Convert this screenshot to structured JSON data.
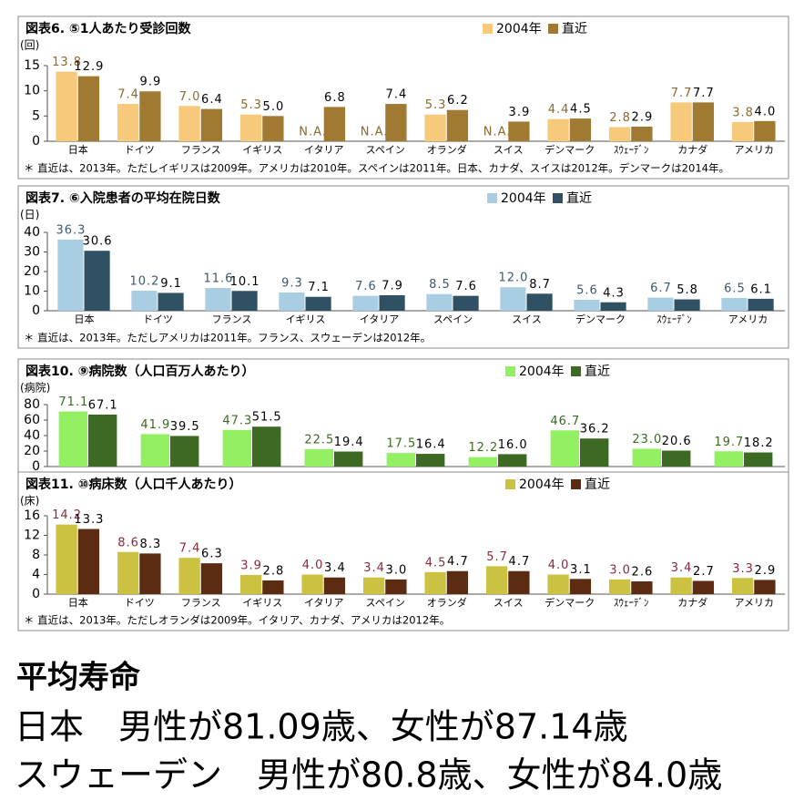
{
  "chart_data": [
    {
      "type": "bar",
      "title": "図表6. ⑤1人あたり受診回数",
      "y_label": "(回)",
      "categories": [
        "日本",
        "ドイツ",
        "フランス",
        "イギリス",
        "イタリア",
        "スペイン",
        "オランダ",
        "スイス",
        "デンマーク",
        "ｽｳｪｰﾃﾞﾝ",
        "カナダ",
        "アメリカ"
      ],
      "series": [
        {
          "name": "2004年",
          "color": "#f7c97a",
          "label_color": "#8a6a30",
          "values": [
            13.8,
            7.4,
            7.0,
            5.3,
            null,
            null,
            5.3,
            null,
            4.4,
            2.8,
            7.7,
            3.8
          ],
          "value_labels": [
            "13.8",
            "7.4",
            "7.0",
            "5.3",
            "N.A.",
            "N.A.",
            "5.3",
            "N.A.",
            "4.4",
            "2.8",
            "7.7",
            "3.8"
          ]
        },
        {
          "name": "直近",
          "color": "#a07a32",
          "label_color": "#000000",
          "values": [
            12.9,
            9.9,
            6.4,
            5.0,
            6.8,
            7.4,
            6.2,
            3.9,
            4.5,
            2.9,
            7.7,
            4.0
          ],
          "value_labels": [
            "12.9",
            "9.9",
            "6.4",
            "5.0",
            "6.8",
            "7.4",
            "6.2",
            "3.9",
            "4.5",
            "2.9",
            "7.7",
            "4.0"
          ]
        }
      ],
      "ylim": [
        0,
        15
      ],
      "yticks": [
        0,
        5,
        10,
        15
      ],
      "note": "＊ 直近は、2013年。ただしイギリスは2009年。アメリカは2010年。スペインは2011年。日本、カナダ、スイスは2012年。デンマークは2014年。"
    },
    {
      "type": "bar",
      "title": "図表7. ⑥入院患者の平均在院日数",
      "y_label": "(日)",
      "categories": [
        "日本",
        "ドイツ",
        "フランス",
        "イギリス",
        "イタリア",
        "スペイン",
        "スイス",
        "デンマーク",
        "ｽｳｪｰﾃﾞﾝ",
        "アメリカ"
      ],
      "series": [
        {
          "name": "2004年",
          "color": "#a9cde2",
          "label_color": "#3a5a70",
          "values": [
            36.3,
            10.2,
            11.6,
            9.3,
            7.6,
            8.5,
            12.0,
            5.6,
            6.7,
            6.5
          ],
          "value_labels": [
            "36.3",
            "10.2",
            "11.6",
            "9.3",
            "7.6",
            "8.5",
            "12.0",
            "5.6",
            "6.7",
            "6.5"
          ]
        },
        {
          "name": "直近",
          "color": "#2f5163",
          "label_color": "#000000",
          "values": [
            30.6,
            9.1,
            10.1,
            7.1,
            7.9,
            7.6,
            8.7,
            4.3,
            5.8,
            6.1
          ],
          "value_labels": [
            "30.6",
            "9.1",
            "10.1",
            "7.1",
            "7.9",
            "7.6",
            "8.7",
            "4.3",
            "5.8",
            "6.1"
          ]
        }
      ],
      "ylim": [
        0,
        40
      ],
      "yticks": [
        0,
        10,
        20,
        30,
        40
      ],
      "note": "＊ 直近は、2013年。ただしアメリカは2011年。フランス、スウェーデンは2012年。"
    },
    {
      "type": "bar",
      "title": "図表10. ⑨病院数（人口百万人あたり）",
      "y_label": "(病院)",
      "categories": [
        null,
        null,
        null,
        null,
        null,
        null,
        null,
        null,
        null
      ],
      "series": [
        {
          "name": "2004年",
          "color": "#92f062",
          "label_color": "#3a6a20",
          "values": [
            71.1,
            41.9,
            47.3,
            22.5,
            17.5,
            12.2,
            46.7,
            23.0,
            19.7
          ],
          "value_labels": [
            "71.1",
            "41.9",
            "47.3",
            "22.5",
            "17.5",
            "12.2",
            "46.7",
            "23.0",
            "19.7"
          ]
        },
        {
          "name": "直近",
          "color": "#3c6a22",
          "label_color": "#000000",
          "values": [
            67.1,
            39.5,
            51.5,
            19.4,
            16.4,
            16.0,
            36.2,
            20.6,
            18.2
          ],
          "value_labels": [
            "67.1",
            "39.5",
            "51.5",
            "19.4",
            "16.4",
            "16.0",
            "36.2",
            "20.6",
            "18.2"
          ]
        }
      ],
      "ylim": [
        0,
        80
      ],
      "yticks": [
        0,
        20,
        40,
        60,
        80
      ]
    },
    {
      "type": "bar",
      "title": "図表11. ⑩病床数（人口千人あたり）",
      "y_label": "(床)",
      "categories": [
        "日本",
        "ドイツ",
        "フランス",
        "イギリス",
        "イタリア",
        "スペイン",
        "オランダ",
        "スイス",
        "デンマーク",
        "ｽｳｪｰﾃﾞﾝ",
        "カナダ",
        "アメリカ"
      ],
      "series": [
        {
          "name": "2004年",
          "color": "#cbc241",
          "label_color": "#8a2a3a",
          "values": [
            14.2,
            8.6,
            7.4,
            3.9,
            4.0,
            3.4,
            4.5,
            5.7,
            4.0,
            3.0,
            3.4,
            3.3
          ],
          "value_labels": [
            "14.2",
            "8.6",
            "7.4",
            "3.9",
            "4.0",
            "3.4",
            "4.5",
            "5.7",
            "4.0",
            "3.0",
            "3.4",
            "3.3"
          ]
        },
        {
          "name": "直近",
          "color": "#5c2c12",
          "label_color": "#000000",
          "values": [
            13.3,
            8.3,
            6.3,
            2.8,
            3.4,
            3.0,
            4.7,
            4.7,
            3.1,
            2.6,
            2.7,
            2.9
          ],
          "value_labels": [
            "13.3",
            "8.3",
            "6.3",
            "2.8",
            "3.4",
            "3.0",
            "4.7",
            "4.7",
            "3.1",
            "2.6",
            "2.7",
            "2.9"
          ]
        }
      ],
      "ylim": [
        0,
        16
      ],
      "yticks": [
        0,
        4,
        8,
        12,
        16
      ],
      "note": "＊ 直近は、2013年。ただしオランダは2009年。イタリア、カナダ、アメリカは2012年。"
    }
  ],
  "text": {
    "heading": "平均寿命",
    "lines": [
      "日本　男性が81.09歳、女性が87.14歳",
      "スウェーデン　男性が80.8歳、女性が84.0歳"
    ]
  }
}
